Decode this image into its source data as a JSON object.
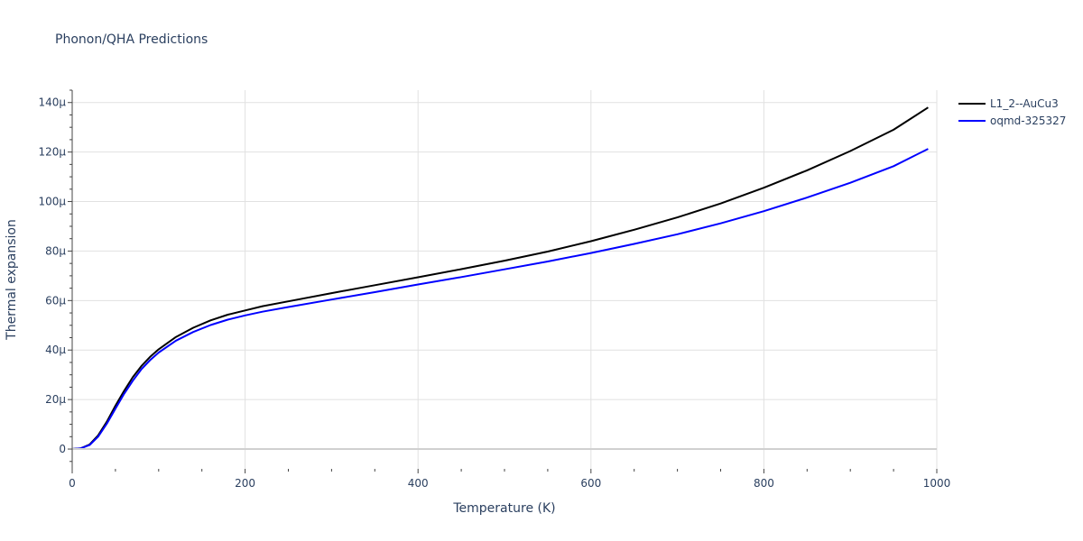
{
  "chart_data": {
    "type": "line",
    "title": "Phonon/QHA Predictions",
    "xlabel": "Temperature (K)",
    "ylabel": "Thermal expansion",
    "xlim": [
      0,
      1000
    ],
    "ylim": [
      -8,
      145
    ],
    "x_ticks": [
      0,
      200,
      400,
      600,
      800,
      1000
    ],
    "x_tick_labels": [
      "0",
      "200",
      "400",
      "600",
      "800",
      "1000"
    ],
    "y_ticks": [
      0,
      20,
      40,
      60,
      80,
      100,
      120,
      140
    ],
    "y_tick_labels": [
      "0",
      "20μ",
      "40μ",
      "60μ",
      "80μ",
      "100μ",
      "120μ",
      "140μ"
    ],
    "grid": true,
    "legend_position": "top-right",
    "series": [
      {
        "name": "L1_2--AuCu3",
        "color": "#000000",
        "x": [
          0,
          10,
          20,
          30,
          40,
          50,
          60,
          70,
          80,
          90,
          100,
          120,
          140,
          160,
          180,
          200,
          220,
          250,
          300,
          350,
          400,
          450,
          500,
          550,
          600,
          650,
          700,
          750,
          800,
          850,
          900,
          950,
          990
        ],
        "y": [
          0,
          0.3,
          1.8,
          5.5,
          11,
          17.5,
          23.5,
          29,
          33.5,
          37.2,
          40.3,
          45.3,
          49,
          52,
          54.3,
          56,
          57.7,
          59.7,
          63,
          66.2,
          69.4,
          72.7,
          76.1,
          79.8,
          84,
          88.6,
          93.6,
          99.2,
          105.6,
          112.6,
          120.4,
          129,
          138
        ]
      },
      {
        "name": "oqmd-325327",
        "color": "#0000ff",
        "x": [
          0,
          10,
          20,
          30,
          40,
          50,
          60,
          70,
          80,
          90,
          100,
          120,
          140,
          160,
          180,
          200,
          220,
          250,
          300,
          350,
          400,
          450,
          500,
          550,
          600,
          650,
          700,
          750,
          800,
          850,
          900,
          950,
          990
        ],
        "y": [
          0,
          0.3,
          1.6,
          5,
          10.2,
          16.3,
          22.3,
          27.6,
          32.2,
          35.9,
          39,
          43.8,
          47.3,
          50.1,
          52.3,
          54,
          55.5,
          57.4,
          60.4,
          63.4,
          66.5,
          69.5,
          72.6,
          75.8,
          79.2,
          82.9,
          86.8,
          91.2,
          96.1,
          101.6,
          107.6,
          114.3,
          121.3
        ]
      }
    ]
  }
}
